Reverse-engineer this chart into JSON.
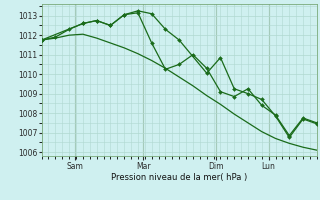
{
  "background_color": "#cff0f0",
  "grid_color": "#b0d8d0",
  "line_color": "#1a6b1a",
  "vline_color": "#8aaa8a",
  "title": "Pression niveau de la mer( hPa )",
  "ylim": [
    1005.8,
    1013.6
  ],
  "yticks": [
    1006,
    1007,
    1008,
    1009,
    1010,
    1011,
    1012,
    1013
  ],
  "day_positions": [
    0.12,
    0.37,
    0.635,
    0.825
  ],
  "day_labels": [
    "Sam",
    "Mar",
    "Dim",
    "Lun"
  ],
  "series_smooth_x": [
    0.0,
    0.05,
    0.1,
    0.15,
    0.2,
    0.25,
    0.3,
    0.35,
    0.4,
    0.45,
    0.5,
    0.55,
    0.6,
    0.65,
    0.7,
    0.75,
    0.8,
    0.85,
    0.9,
    0.95,
    1.0
  ],
  "series_smooth_y": [
    1011.75,
    1011.85,
    1012.0,
    1012.05,
    1011.85,
    1011.6,
    1011.35,
    1011.05,
    1010.7,
    1010.3,
    1009.85,
    1009.4,
    1008.9,
    1008.45,
    1007.95,
    1007.5,
    1007.05,
    1006.7,
    1006.45,
    1006.25,
    1006.1
  ],
  "series1_x": [
    0.0,
    0.05,
    0.1,
    0.15,
    0.2,
    0.25,
    0.3,
    0.35,
    0.4,
    0.45,
    0.5,
    0.55,
    0.6,
    0.65,
    0.7,
    0.75,
    0.8,
    0.85,
    0.9,
    0.95,
    1.0
  ],
  "series1_y": [
    1011.75,
    1011.9,
    1012.3,
    1012.6,
    1012.75,
    1012.5,
    1013.05,
    1013.15,
    1011.6,
    1010.25,
    1010.5,
    1011.0,
    1010.3,
    1009.1,
    1008.85,
    1009.25,
    1008.4,
    1007.9,
    1006.85,
    1007.75,
    1007.5
  ],
  "series2_x": [
    0.0,
    0.15,
    0.2,
    0.25,
    0.3,
    0.35,
    0.4,
    0.45,
    0.5,
    0.6,
    0.65,
    0.7,
    0.75,
    0.8,
    0.85,
    0.9,
    0.95,
    1.0
  ],
  "series2_y": [
    1011.75,
    1012.6,
    1012.75,
    1012.5,
    1013.05,
    1013.25,
    1013.1,
    1012.3,
    1011.75,
    1010.05,
    1010.85,
    1009.25,
    1009.0,
    1008.7,
    1007.85,
    1006.75,
    1007.7,
    1007.45
  ]
}
